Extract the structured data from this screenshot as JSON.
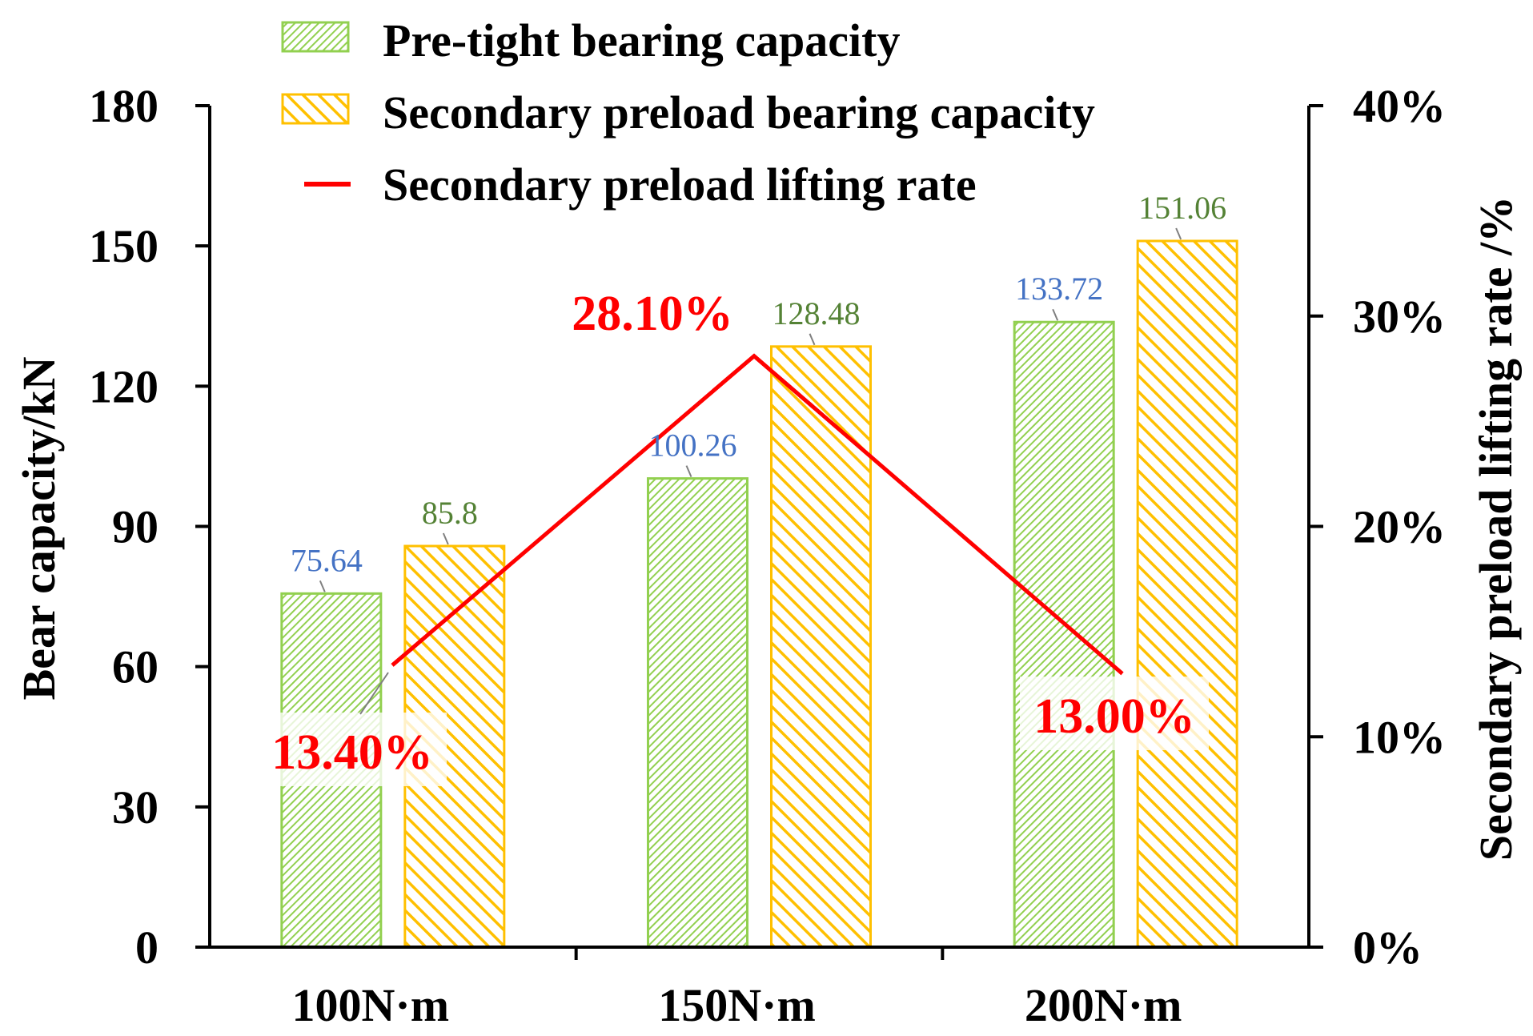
{
  "chart_data": {
    "type": "bar",
    "categories": [
      "100N·m",
      "150N·m",
      "200N·m"
    ],
    "series": [
      {
        "name": "Pre-tight bearing capacity",
        "kind": "bar",
        "axis": "left",
        "values": [
          75.64,
          100.26,
          133.72
        ],
        "labels": [
          "75.64",
          "100.26",
          "133.72"
        ],
        "fill": "#92d050",
        "label_color": "#4472c4"
      },
      {
        "name": "Secondary preload bearing capacity",
        "kind": "bar",
        "axis": "left",
        "values": [
          85.8,
          128.48,
          151.06
        ],
        "labels": [
          "85.8",
          "128.48",
          "151.06"
        ],
        "fill": "#ffc000",
        "label_color": "#548235"
      },
      {
        "name": "Secondary preload lifting rate",
        "kind": "line",
        "axis": "right",
        "values": [
          0.134,
          0.281,
          0.13
        ],
        "labels": [
          "13.40%",
          "28.10%",
          "13.00%"
        ],
        "color": "#ff0000"
      }
    ],
    "ylabel": "Bear capacity/kN",
    "ylim": [
      0,
      180
    ],
    "yticks": [
      "0",
      "30",
      "60",
      "90",
      "120",
      "150",
      "180"
    ],
    "y2label": "Secondary preload lifting rate /%",
    "y2lim": [
      0,
      0.4
    ],
    "y2ticks": [
      "0%",
      "10%",
      "20%",
      "30%",
      "40%"
    ],
    "grid": false,
    "legend_position": "top"
  }
}
